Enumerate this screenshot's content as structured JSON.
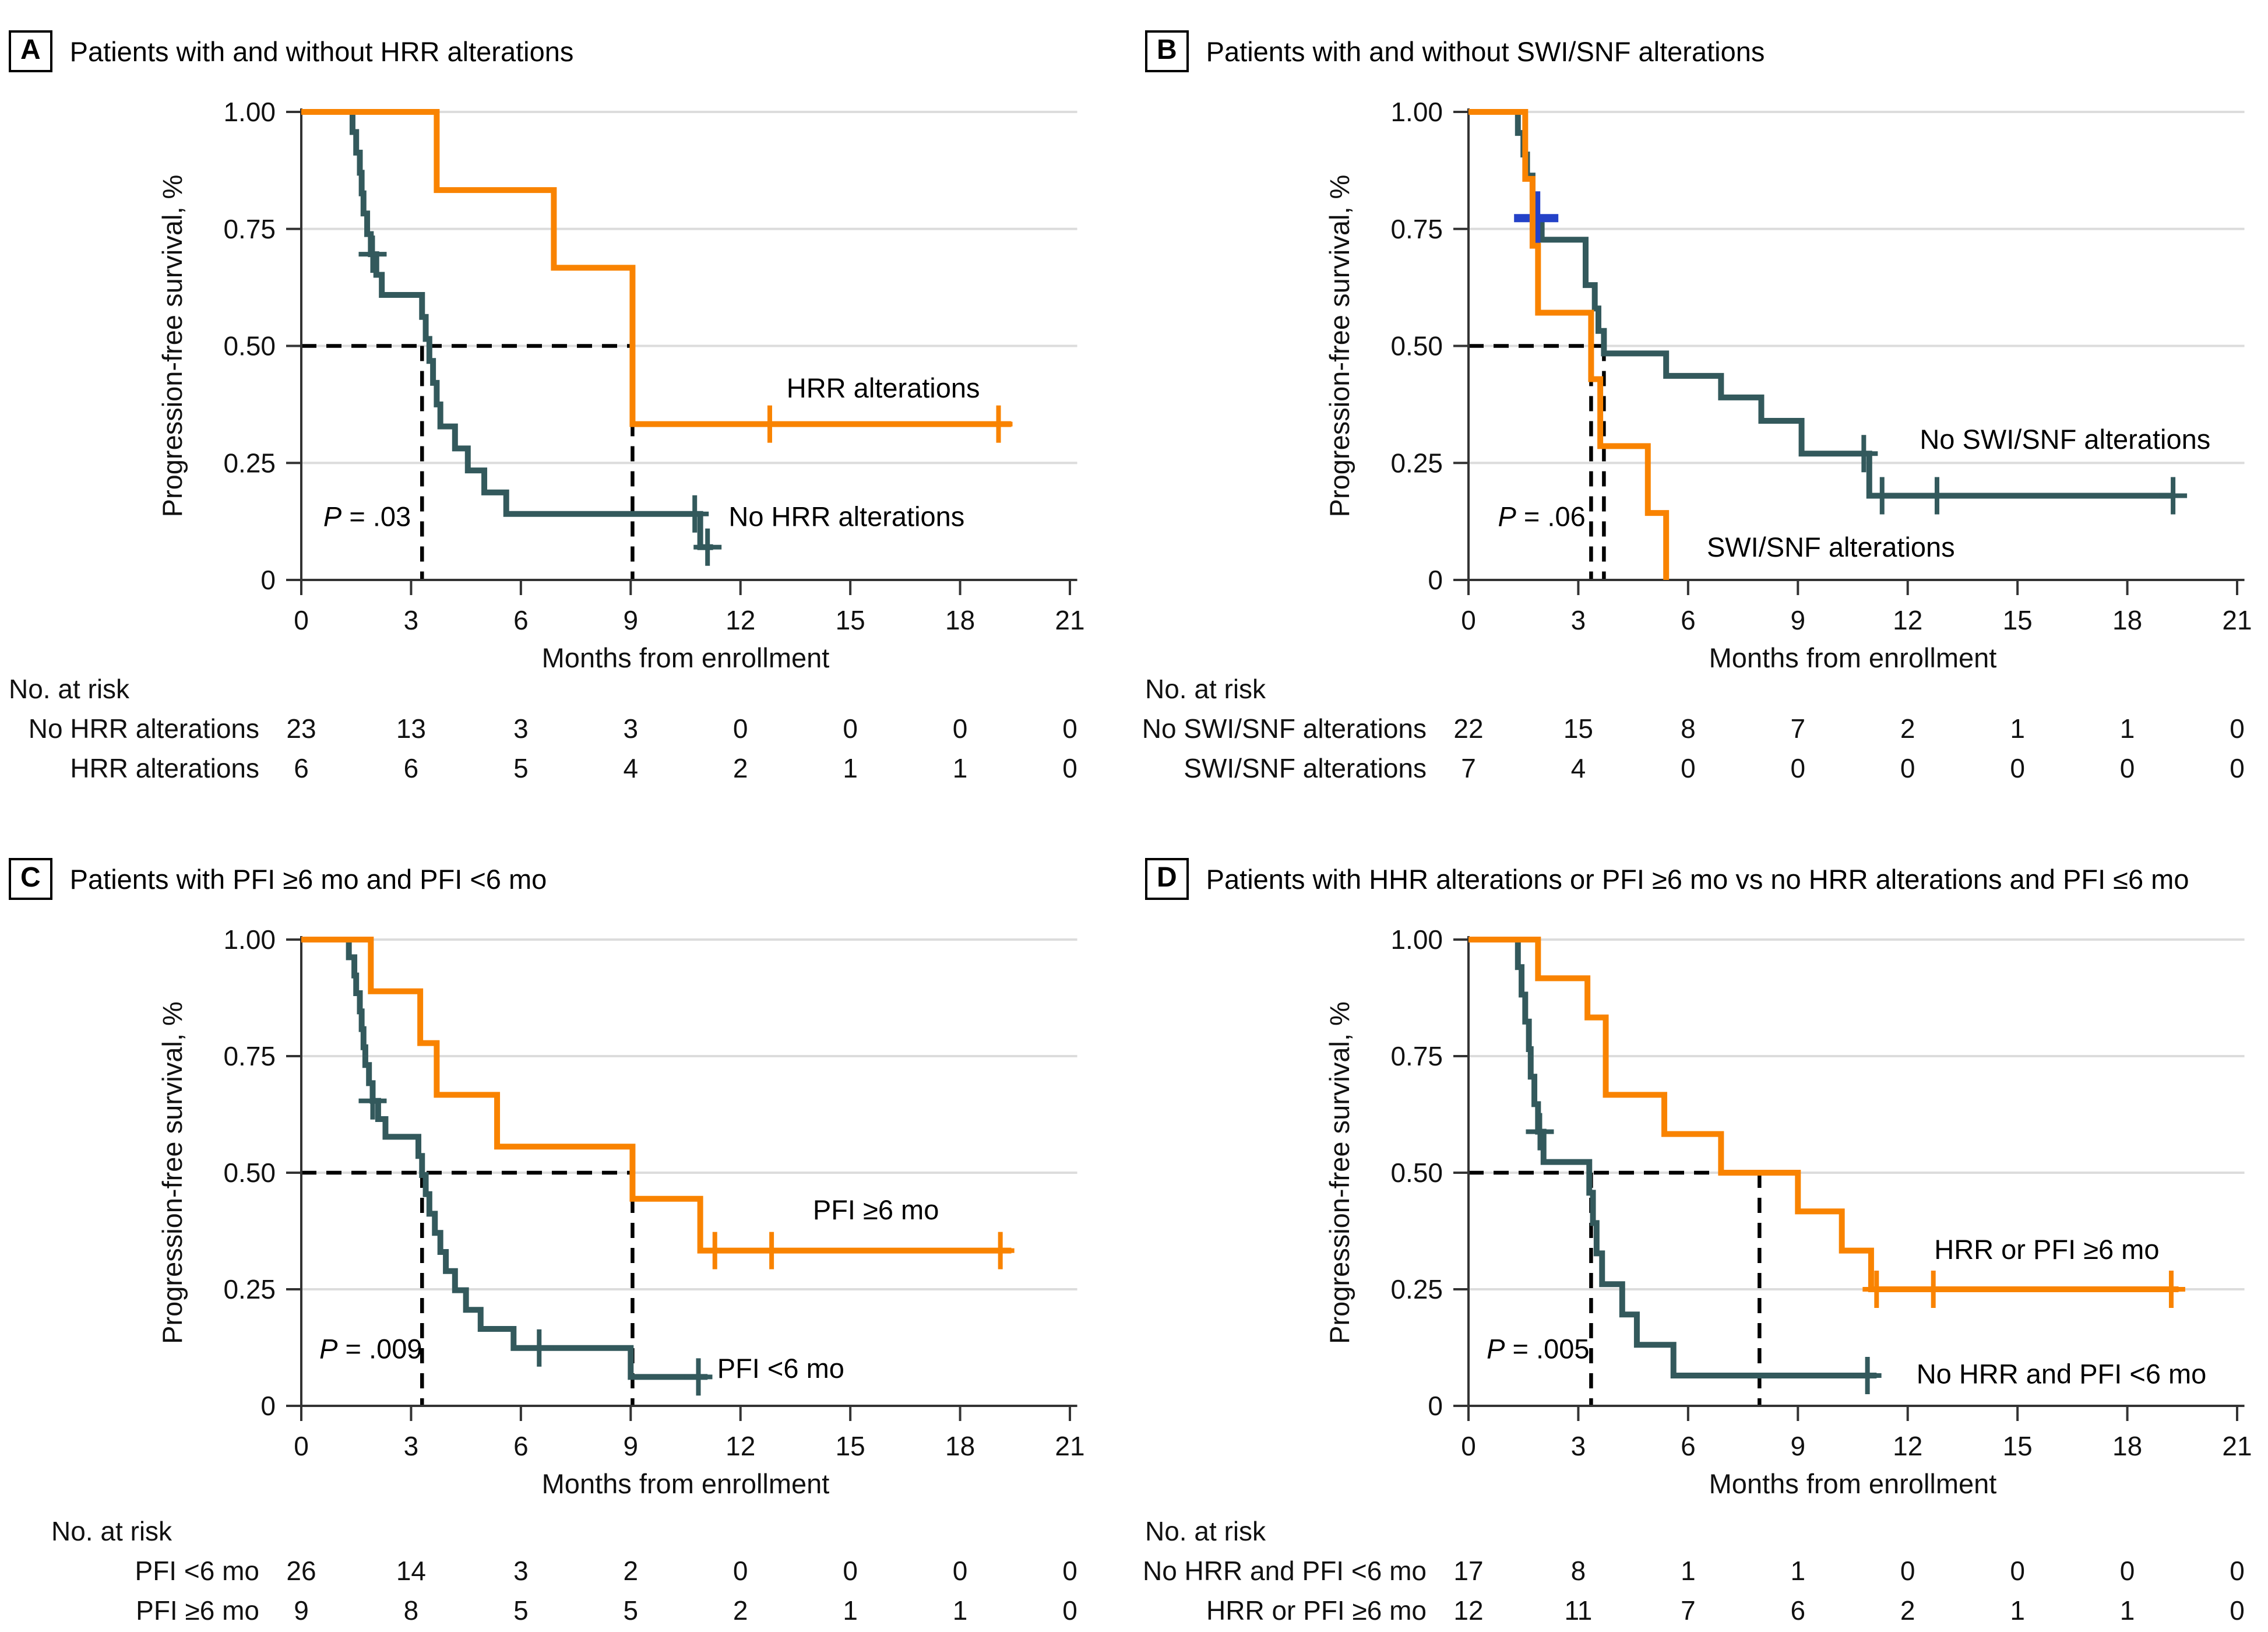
{
  "colors": {
    "orange": "#F98300",
    "teal": "#33595C",
    "blue": "#2442C8",
    "grid": "#DCDCDC",
    "dash": "#000000",
    "axis": "#333333",
    "text": "#111111"
  },
  "axes": {
    "x_label": "Months from enrollment",
    "y_label": "Progression-free survival, %",
    "x_ticks": [
      "0",
      "3",
      "6",
      "9",
      "12",
      "15",
      "18",
      "21"
    ],
    "x_tick_months": [
      0,
      3,
      6,
      9,
      12,
      15,
      18,
      21
    ],
    "y_ticks": [
      "1.00",
      "0.75",
      "0.50",
      "0.25",
      "0"
    ],
    "y_tick_values": [
      1.0,
      0.75,
      0.5,
      0.25,
      0
    ],
    "x_max": 21
  },
  "risk_header": "No. at risk",
  "chart_data": [
    {
      "panel": "A",
      "title": "Patients with and without HRR alterations",
      "type": "line",
      "p_value": "P = .03",
      "p_at": [
        1.8,
        0.135
      ],
      "median_y": 0.5,
      "median_x": [
        3.3,
        9.05
      ],
      "series": [
        {
          "name": "No HRR alterations",
          "color_key": "teal",
          "label": "No HRR alterations",
          "label_at": [
            14.9,
            0.135
          ],
          "steps": [
            [
              0,
              1
            ],
            [
              1.4,
              0.957
            ],
            [
              1.5,
              0.913
            ],
            [
              1.6,
              0.87
            ],
            [
              1.65,
              0.826
            ],
            [
              1.7,
              0.783
            ],
            [
              1.8,
              0.739
            ],
            [
              1.9,
              0.696
            ],
            [
              2.05,
              0.652
            ],
            [
              2.2,
              0.609
            ],
            [
              3.3,
              0.562
            ],
            [
              3.4,
              0.515
            ],
            [
              3.5,
              0.468
            ],
            [
              3.6,
              0.421
            ],
            [
              3.7,
              0.375
            ],
            [
              3.8,
              0.328
            ],
            [
              4.2,
              0.281
            ],
            [
              4.55,
              0.234
            ],
            [
              5.0,
              0.187
            ],
            [
              5.6,
              0.141
            ],
            [
              10.9,
              0.07
            ],
            [
              11.25,
              0.07
            ]
          ],
          "censors": [
            [
              1.95,
              0.696
            ],
            [
              10.75,
              0.141
            ],
            [
              11.1,
              0.07
            ]
          ]
        },
        {
          "name": "HRR alterations",
          "color_key": "orange",
          "label": "HRR alterations",
          "label_at": [
            15.9,
            0.41
          ],
          "steps": [
            [
              0,
              1
            ],
            [
              3.7,
              0.833
            ],
            [
              6.9,
              0.667
            ],
            [
              9.05,
              0.333
            ],
            [
              19.4,
              0.333
            ]
          ],
          "censors": [
            [
              12.8,
              0.333
            ],
            [
              19.05,
              0.333
            ]
          ]
        }
      ],
      "risk_rows": [
        {
          "label": "No HRR alterations",
          "values": [
            "23",
            "13",
            "3",
            "3",
            "0",
            "0",
            "0",
            "0"
          ]
        },
        {
          "label": "HRR alterations",
          "values": [
            "6",
            "6",
            "5",
            "4",
            "2",
            "1",
            "1",
            "0"
          ]
        }
      ]
    },
    {
      "panel": "B",
      "title": "Patients with and without SWI/SNF alterations",
      "type": "line",
      "p_value": "P = .06",
      "p_at": [
        2.0,
        0.135
      ],
      "median_y": 0.5,
      "median_x": [
        3.35,
        3.7
      ],
      "series": [
        {
          "name": "No SWI/SNF alterations",
          "color_key": "teal",
          "label": "No SWI/SNF alterations",
          "label_at": [
            16.3,
            0.3
          ],
          "steps": [
            [
              0,
              1
            ],
            [
              1.35,
              0.955
            ],
            [
              1.5,
              0.909
            ],
            [
              1.6,
              0.864
            ],
            [
              1.75,
              0.818
            ],
            [
              1.85,
              0.773
            ],
            [
              2.0,
              0.727
            ],
            [
              3.2,
              0.63
            ],
            [
              3.45,
              0.58
            ],
            [
              3.55,
              0.532
            ],
            [
              3.7,
              0.484
            ],
            [
              5.4,
              0.436
            ],
            [
              6.9,
              0.39
            ],
            [
              8.0,
              0.34
            ],
            [
              9.1,
              0.27
            ],
            [
              10.95,
              0.18
            ],
            [
              19.3,
              0.18
            ]
          ],
          "censors": [
            [
              10.8,
              0.27
            ],
            [
              11.3,
              0.18
            ],
            [
              12.8,
              0.18
            ],
            [
              19.25,
              0.18
            ]
          ],
          "extra_censors": [
            {
              "at": [
                1.85,
                0.773
              ],
              "color_key": "blue"
            }
          ]
        },
        {
          "name": "SWI/SNF alterations",
          "color_key": "orange",
          "label": "SWI/SNF alterations",
          "label_at": [
            9.9,
            0.07
          ],
          "steps": [
            [
              0,
              1
            ],
            [
              1.55,
              0.857
            ],
            [
              1.75,
              0.714
            ],
            [
              1.9,
              0.571
            ],
            [
              3.35,
              0.429
            ],
            [
              3.6,
              0.286
            ],
            [
              4.9,
              0.143
            ],
            [
              5.4,
              0
            ]
          ],
          "censors": []
        }
      ],
      "risk_rows": [
        {
          "label": "No SWI/SNF alterations",
          "values": [
            "22",
            "15",
            "8",
            "7",
            "2",
            "1",
            "1",
            "0"
          ]
        },
        {
          "label": "SWI/SNF alterations",
          "values": [
            "7",
            "4",
            "0",
            "0",
            "0",
            "0",
            "0",
            "0"
          ]
        }
      ]
    },
    {
      "panel": "C",
      "title": "Patients with PFI ≥6 mo and PFI <6 mo",
      "type": "line",
      "p_value": "P = .009",
      "p_at": [
        1.9,
        0.122
      ],
      "median_y": 0.5,
      "median_x": [
        3.3,
        9.05
      ],
      "series": [
        {
          "name": "PFI <6 mo",
          "color_key": "teal",
          "label": "PFI <6 mo",
          "label_at": [
            13.1,
            0.08
          ],
          "steps": [
            [
              0,
              1
            ],
            [
              1.3,
              0.962
            ],
            [
              1.45,
              0.923
            ],
            [
              1.5,
              0.885
            ],
            [
              1.6,
              0.846
            ],
            [
              1.65,
              0.808
            ],
            [
              1.7,
              0.769
            ],
            [
              1.75,
              0.731
            ],
            [
              1.85,
              0.692
            ],
            [
              1.95,
              0.654
            ],
            [
              2.1,
              0.615
            ],
            [
              2.3,
              0.577
            ],
            [
              3.2,
              0.536
            ],
            [
              3.3,
              0.495
            ],
            [
              3.4,
              0.454
            ],
            [
              3.5,
              0.412
            ],
            [
              3.65,
              0.371
            ],
            [
              3.8,
              0.33
            ],
            [
              3.95,
              0.289
            ],
            [
              4.2,
              0.248
            ],
            [
              4.5,
              0.206
            ],
            [
              4.9,
              0.165
            ],
            [
              5.8,
              0.124
            ],
            [
              9.0,
              0.062
            ],
            [
              11.1,
              0.062
            ]
          ],
          "censors": [
            [
              1.95,
              0.654
            ],
            [
              6.5,
              0.124
            ],
            [
              10.85,
              0.062
            ]
          ]
        },
        {
          "name": "PFI ≥6 mo",
          "color_key": "orange",
          "label": "PFI ≥6 mo",
          "label_at": [
            15.7,
            0.42
          ],
          "steps": [
            [
              0,
              1
            ],
            [
              1.9,
              0.889
            ],
            [
              3.25,
              0.778
            ],
            [
              3.7,
              0.667
            ],
            [
              5.35,
              0.556
            ],
            [
              9.05,
              0.444
            ],
            [
              10.9,
              0.333
            ],
            [
              19.4,
              0.333
            ]
          ],
          "censors": [
            [
              11.3,
              0.333
            ],
            [
              12.85,
              0.333
            ],
            [
              19.1,
              0.333
            ]
          ]
        }
      ],
      "risk_rows": [
        {
          "label": "PFI <6 mo",
          "values": [
            "26",
            "14",
            "3",
            "2",
            "0",
            "0",
            "0",
            "0"
          ]
        },
        {
          "label": "PFI ≥6 mo",
          "values": [
            "9",
            "8",
            "5",
            "5",
            "2",
            "1",
            "1",
            "0"
          ]
        }
      ]
    },
    {
      "panel": "D",
      "title": "Patients with HHR alterations or PFI ≥6 mo vs no HRR alterations and PFI ≤6 mo",
      "type": "line",
      "p_value": "P = .005",
      "p_at": [
        1.9,
        0.122
      ],
      "median_y": 0.5,
      "median_x": [
        3.35,
        7.95
      ],
      "series": [
        {
          "name": "No HRR and PFI <6 mo",
          "color_key": "teal",
          "label": "No HRR and PFI <6 mo",
          "label_at": [
            16.2,
            0.068
          ],
          "steps": [
            [
              0,
              1
            ],
            [
              1.35,
              0.941
            ],
            [
              1.45,
              0.882
            ],
            [
              1.55,
              0.824
            ],
            [
              1.65,
              0.765
            ],
            [
              1.7,
              0.706
            ],
            [
              1.8,
              0.647
            ],
            [
              1.9,
              0.588
            ],
            [
              2.05,
              0.523
            ],
            [
              3.3,
              0.457
            ],
            [
              3.4,
              0.392
            ],
            [
              3.5,
              0.327
            ],
            [
              3.65,
              0.261
            ],
            [
              4.2,
              0.196
            ],
            [
              4.6,
              0.131
            ],
            [
              5.6,
              0.065
            ],
            [
              11.15,
              0.065
            ]
          ],
          "censors": [
            [
              1.95,
              0.588
            ],
            [
              10.9,
              0.065
            ]
          ]
        },
        {
          "name": "HRR or PFI ≥6 mo",
          "color_key": "orange",
          "label": "HRR or PFI ≥6 mo",
          "label_at": [
            15.8,
            0.335
          ],
          "steps": [
            [
              0,
              1
            ],
            [
              1.9,
              0.917
            ],
            [
              3.25,
              0.833
            ],
            [
              3.75,
              0.667
            ],
            [
              5.35,
              0.583
            ],
            [
              6.9,
              0.5
            ],
            [
              9.0,
              0.417
            ],
            [
              10.2,
              0.333
            ],
            [
              11.0,
              0.25
            ],
            [
              19.4,
              0.25
            ]
          ],
          "censors": [
            [
              11.15,
              0.25
            ],
            [
              12.7,
              0.25
            ],
            [
              19.2,
              0.25
            ]
          ]
        }
      ],
      "risk_rows": [
        {
          "label": "No HRR and PFI <6 mo",
          "values": [
            "17",
            "8",
            "1",
            "1",
            "0",
            "0",
            "0",
            "0"
          ]
        },
        {
          "label": "HRR or PFI ≥6 mo",
          "values": [
            "12",
            "11",
            "7",
            "6",
            "2",
            "1",
            "1",
            "0"
          ]
        }
      ]
    }
  ]
}
